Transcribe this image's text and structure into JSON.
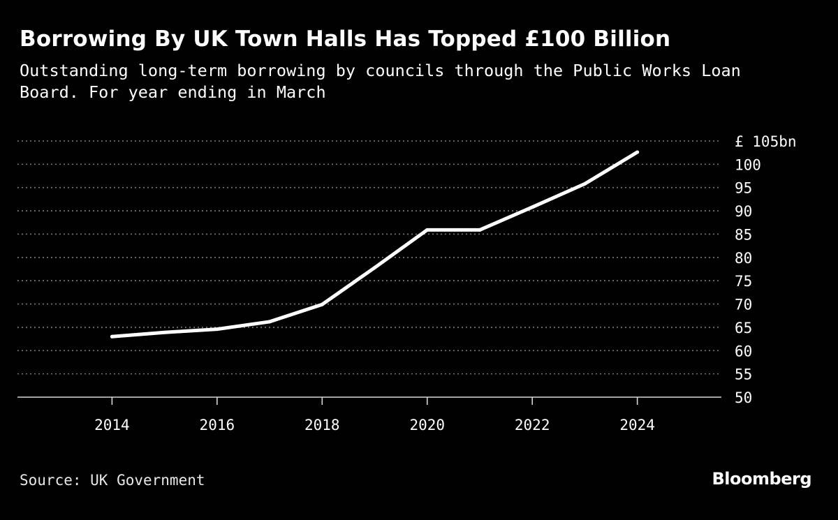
{
  "title": "Borrowing By UK Town Halls Has Topped £100 Billion",
  "subtitle": "Outstanding long-term borrowing by councils through the Public Works Loan Board. For year ending in March",
  "source": "Source: UK Government",
  "brand": "Bloomberg",
  "colors": {
    "background": "#000000",
    "line": "#ffffff",
    "grid": "#7a7a7a",
    "text": "#ffffff"
  },
  "chart_data": {
    "type": "line",
    "title": "Borrowing By UK Town Halls Has Topped £100 Billion",
    "subtitle": "Outstanding long-term borrowing by councils through the Public Works Loan Board. For year ending in March",
    "x": [
      2014,
      2015,
      2016,
      2017,
      2018,
      2019,
      2020,
      2021,
      2022,
      2023,
      2024
    ],
    "series": [
      {
        "values": [
          63.0,
          63.9,
          64.6,
          66.2,
          69.9,
          77.8,
          85.9,
          85.9,
          90.8,
          95.8,
          102.6
        ]
      }
    ],
    "xlim": [
      2012.2,
      2025.6
    ],
    "ylim": [
      50,
      105
    ],
    "x_ticks": [
      2014,
      2016,
      2018,
      2020,
      2022,
      2024
    ],
    "x_tick_labels": [
      "2014",
      "2016",
      "2018",
      "2020",
      "2022",
      "2024"
    ],
    "y_ticks": [
      50,
      55,
      60,
      65,
      70,
      75,
      80,
      85,
      90,
      95,
      100,
      105
    ],
    "y_tick_labels": [
      "50",
      "55",
      "60",
      "65",
      "70",
      "75",
      "80",
      "85",
      "90",
      "95",
      "100",
      "£ 105bn"
    ],
    "y_axis_side": "right",
    "grid": "horizontal dotted",
    "xlabel": "",
    "ylabel": ""
  }
}
